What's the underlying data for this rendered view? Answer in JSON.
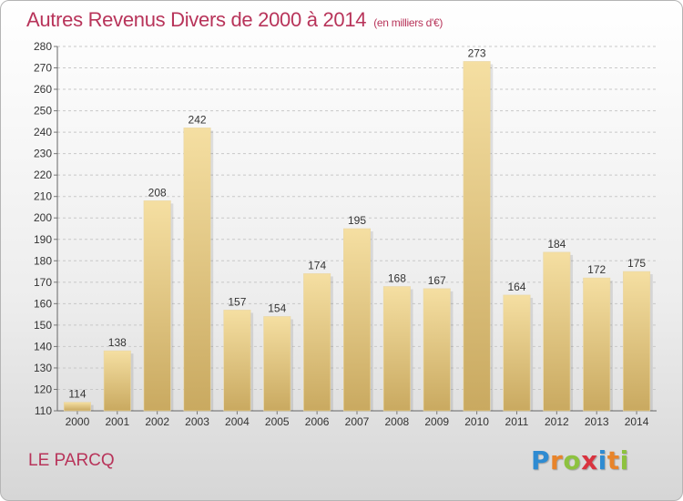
{
  "header": {
    "title": "Autres Revenus Divers de 2000 à 2014",
    "unit": "(en milliers d'€)"
  },
  "footer": {
    "place": "LE PARCQ",
    "logo_letters": [
      "P",
      "r",
      "o",
      "x",
      "i",
      "t",
      "i"
    ],
    "logo_colors": [
      "#2e8bd2",
      "#e8842a",
      "#8dc23f",
      "#d9333f",
      "#2e8bd2",
      "#e8842a",
      "#8dc23f"
    ]
  },
  "colors": {
    "title": "#b8345a",
    "bar_light": "#f5dfa2",
    "bar_dark": "#c9a960",
    "grid": "#c8c8c8"
  },
  "chart_data": {
    "type": "bar",
    "title": "Autres Revenus Divers de 2000 à 2014",
    "subtitle": "(en milliers d'€)",
    "categories": [
      "2000",
      "2001",
      "2002",
      "2003",
      "2004",
      "2005",
      "2006",
      "2007",
      "2008",
      "2009",
      "2010",
      "2011",
      "2012",
      "2013",
      "2014"
    ],
    "values": [
      114,
      138,
      208,
      242,
      157,
      154,
      174,
      195,
      168,
      167,
      273,
      164,
      184,
      172,
      175
    ],
    "ylim": [
      110,
      280
    ],
    "yticks": [
      110,
      120,
      130,
      140,
      150,
      160,
      170,
      180,
      190,
      200,
      210,
      220,
      230,
      240,
      250,
      260,
      270,
      280
    ],
    "grid": true,
    "data_labels": true
  }
}
